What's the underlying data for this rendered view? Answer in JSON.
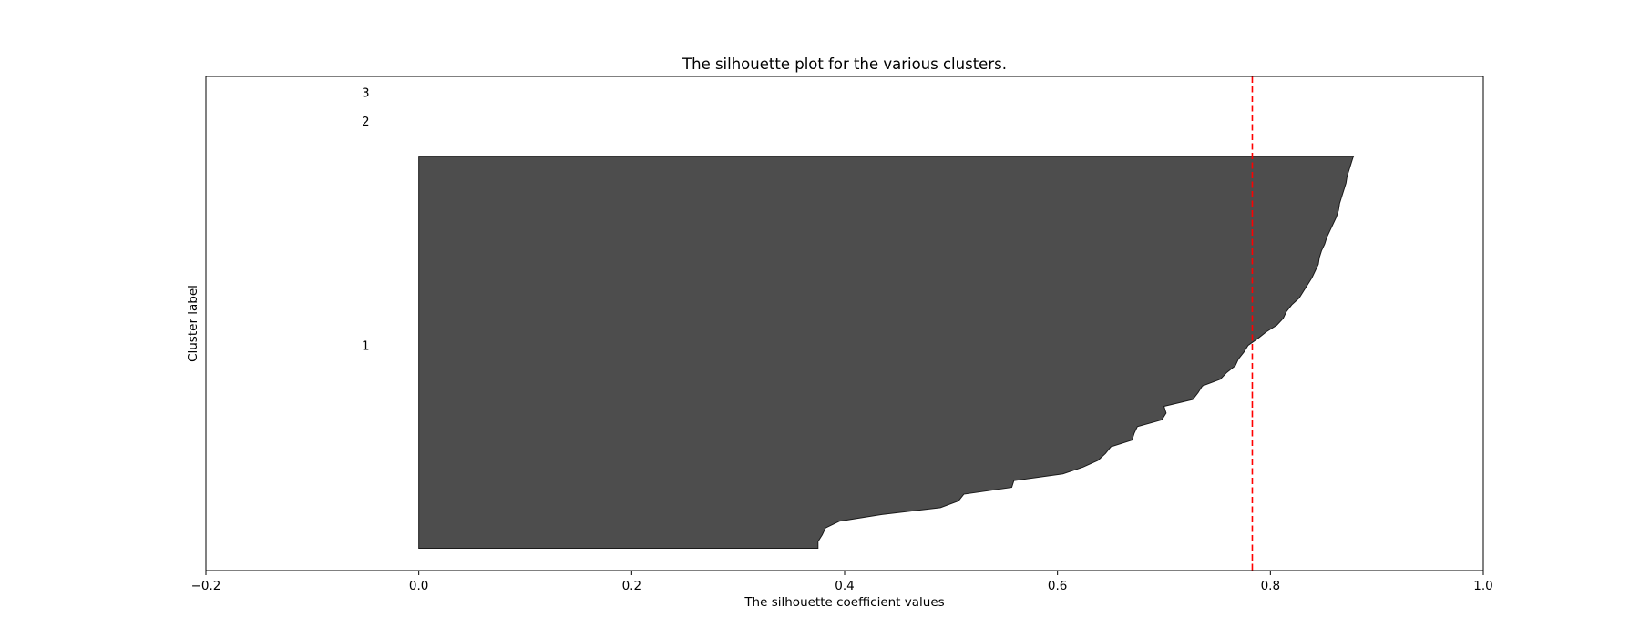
{
  "chart_data": {
    "type": "area",
    "title": "The silhouette plot for the various clusters.",
    "xlabel": "The silhouette coefficient values",
    "ylabel": "Cluster label",
    "xlim": [
      -0.2,
      1.0
    ],
    "ylim": [
      0,
      465
    ],
    "x_ticks": [
      -0.2,
      0.0,
      0.2,
      0.4,
      0.6,
      0.8,
      1.0
    ],
    "x_tick_labels": [
      "−0.2",
      "0.0",
      "0.2",
      "0.4",
      "0.6",
      "0.8",
      "1.0"
    ],
    "y_ticks": [],
    "grid": false,
    "average_silhouette_score": 0.783,
    "reference_line_color": "#ff0000",
    "fill_color": "#4d4d4d",
    "clusters": [
      {
        "label": "1",
        "y_lower": 21,
        "y_upper": 390,
        "label_x": -0.05,
        "label_y": 212,
        "values_sorted_ascending": [
          0.375,
          0.375,
          0.379,
          0.382,
          0.395,
          0.435,
          0.49,
          0.507,
          0.512,
          0.557,
          0.559,
          0.605,
          0.624,
          0.638,
          0.645,
          0.65,
          0.67,
          0.672,
          0.675,
          0.698,
          0.702,
          0.7,
          0.727,
          0.732,
          0.736,
          0.753,
          0.759,
          0.767,
          0.77,
          0.775,
          0.779,
          0.788,
          0.796,
          0.806,
          0.812,
          0.815,
          0.82,
          0.827,
          0.831,
          0.835,
          0.839,
          0.842,
          0.845,
          0.846,
          0.848,
          0.851,
          0.853,
          0.856,
          0.859,
          0.862,
          0.864,
          0.865,
          0.867,
          0.869,
          0.871,
          0.872,
          0.874,
          0.876,
          0.878
        ]
      },
      {
        "label": "2",
        "y_lower": 400,
        "y_upper": 400,
        "label_x": -0.05,
        "label_y": 423
      },
      {
        "label": "3",
        "y_lower": 410,
        "y_upper": 410,
        "label_x": -0.05,
        "label_y": 450
      }
    ]
  }
}
